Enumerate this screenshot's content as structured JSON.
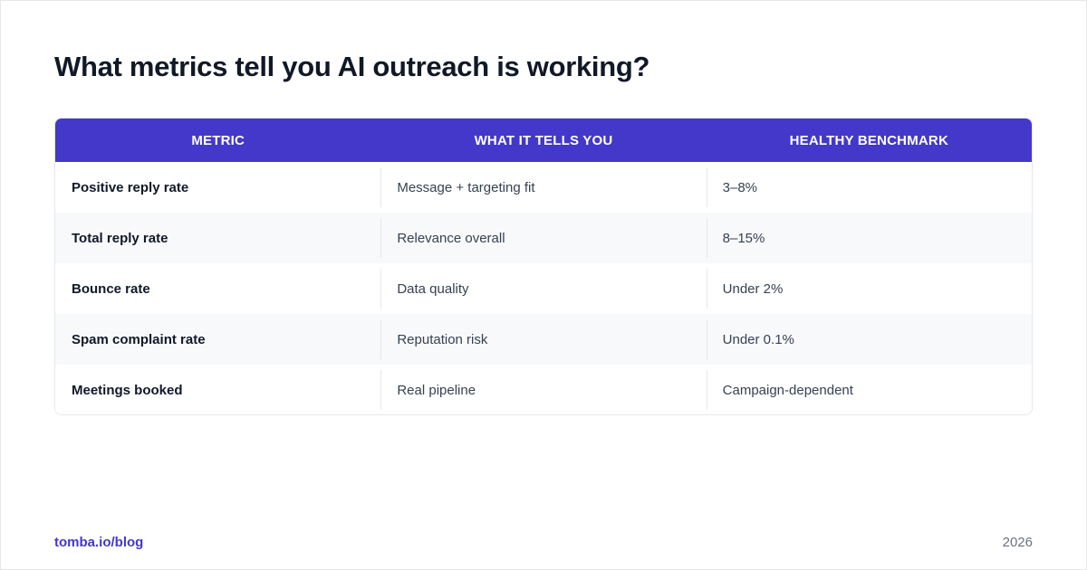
{
  "title": "What metrics tell you AI outreach is working?",
  "table": {
    "headers": [
      "METRIC",
      "WHAT IT TELLS YOU",
      "HEALTHY BENCHMARK"
    ],
    "rows": [
      {
        "metric": "Positive reply rate",
        "meaning": "Message + targeting fit",
        "benchmark": "3–8%"
      },
      {
        "metric": "Total reply rate",
        "meaning": "Relevance overall",
        "benchmark": "8–15%"
      },
      {
        "metric": "Bounce rate",
        "meaning": "Data quality",
        "benchmark": "Under 2%"
      },
      {
        "metric": "Spam complaint rate",
        "meaning": "Reputation risk",
        "benchmark": "Under 0.1%"
      },
      {
        "metric": "Meetings booked",
        "meaning": "Real pipeline",
        "benchmark": "Campaign-dependent"
      }
    ]
  },
  "footer": {
    "link": "tomba.io/blog",
    "year": "2026"
  },
  "colors": {
    "accent": "#4338ca",
    "title": "#111827",
    "row_alt": "#f8f9fb",
    "border": "#e5e7eb"
  }
}
